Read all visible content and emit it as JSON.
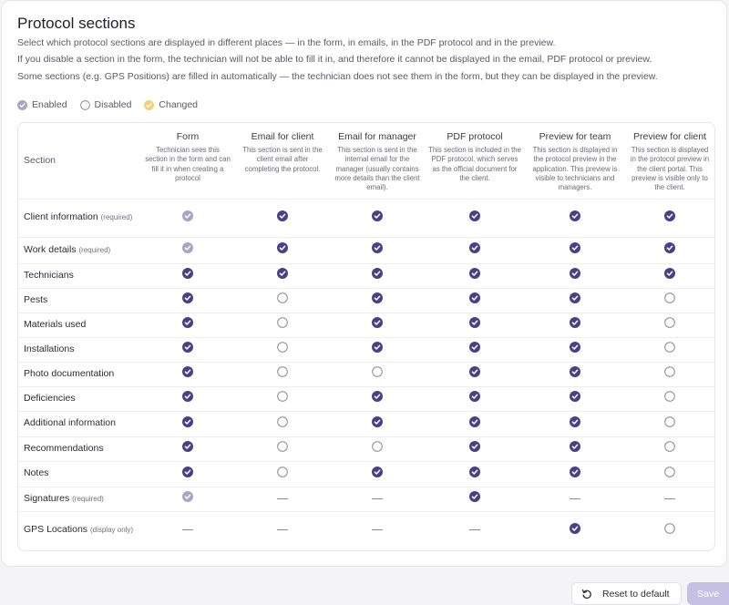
{
  "title": "Protocol sections",
  "descriptions": [
    "Select which protocol sections are displayed in different places — in the form, in emails, in the PDF protocol and in the preview.",
    "If you disable a section in the form, the technician will not be able to fill it in, and therefore it cannot be displayed in the email, PDF protocol or preview.",
    "Some sections (e.g. GPS Positions) are filled in automatically — the technician does not see them in the form, but they can be displayed in the preview."
  ],
  "legend": {
    "enabled": "Enabled",
    "disabled": "Disabled",
    "changed": "Changed"
  },
  "colors": {
    "enabled": "#4b3f87",
    "locked": "#a9a3c6",
    "changed": "#f1d27a",
    "disabled_border": "#8a8a96"
  },
  "table": {
    "section_header": "Section",
    "columns": [
      {
        "title": "Form",
        "desc": "Technician sees this section in the form and can fill it in when creating a protocol"
      },
      {
        "title": "Email for client",
        "desc": "This section is sent in the client email after completing the protocol."
      },
      {
        "title": "Email for manager",
        "desc": "This section is sent in the internal email for the manager (usually contains more details than the client email)."
      },
      {
        "title": "PDF protocol",
        "desc": "This section is included in the PDF protocol, which serves as the official document for the client."
      },
      {
        "title": "Preview for team",
        "desc": "This section is displayed in the protocol preview in the application. This preview is visible to technicians and managers."
      },
      {
        "title": "Preview for client",
        "desc": "This section is displayed in the protocol preview in the client portal. This preview is visible only to the client."
      }
    ],
    "rows": [
      {
        "name": "Client information",
        "suffix": "(required)",
        "cells": [
          "locked",
          "on",
          "on",
          "on",
          "on",
          "on"
        ]
      },
      {
        "name": "Work details",
        "suffix": "(required)",
        "cells": [
          "locked",
          "on",
          "on",
          "on",
          "on",
          "on"
        ]
      },
      {
        "name": "Technicians",
        "suffix": "",
        "cells": [
          "on",
          "on",
          "on",
          "on",
          "on",
          "on"
        ]
      },
      {
        "name": "Pests",
        "suffix": "",
        "cells": [
          "on",
          "off",
          "on",
          "on",
          "on",
          "off"
        ]
      },
      {
        "name": "Materials used",
        "suffix": "",
        "cells": [
          "on",
          "off",
          "on",
          "on",
          "on",
          "off"
        ]
      },
      {
        "name": "Installations",
        "suffix": "",
        "cells": [
          "on",
          "off",
          "on",
          "on",
          "on",
          "off"
        ]
      },
      {
        "name": "Photo documentation",
        "suffix": "",
        "cells": [
          "on",
          "off",
          "off",
          "on",
          "on",
          "off"
        ]
      },
      {
        "name": "Deficiencies",
        "suffix": "",
        "cells": [
          "on",
          "off",
          "on",
          "on",
          "on",
          "off"
        ]
      },
      {
        "name": "Additional information",
        "suffix": "",
        "cells": [
          "on",
          "off",
          "on",
          "on",
          "on",
          "off"
        ]
      },
      {
        "name": "Recommendations",
        "suffix": "",
        "cells": [
          "on",
          "off",
          "off",
          "on",
          "on",
          "off"
        ]
      },
      {
        "name": "Notes",
        "suffix": "",
        "cells": [
          "on",
          "off",
          "on",
          "on",
          "on",
          "off"
        ]
      },
      {
        "name": "Signatures",
        "suffix": "(required)",
        "cells": [
          "locked",
          "na",
          "na",
          "on",
          "na",
          "na"
        ]
      },
      {
        "name": "GPS Locations",
        "suffix": "(display only)",
        "cells": [
          "na",
          "na",
          "na",
          "na",
          "on",
          "off"
        ]
      }
    ]
  },
  "buttons": {
    "reset": "Reset to default",
    "save": "Save"
  }
}
